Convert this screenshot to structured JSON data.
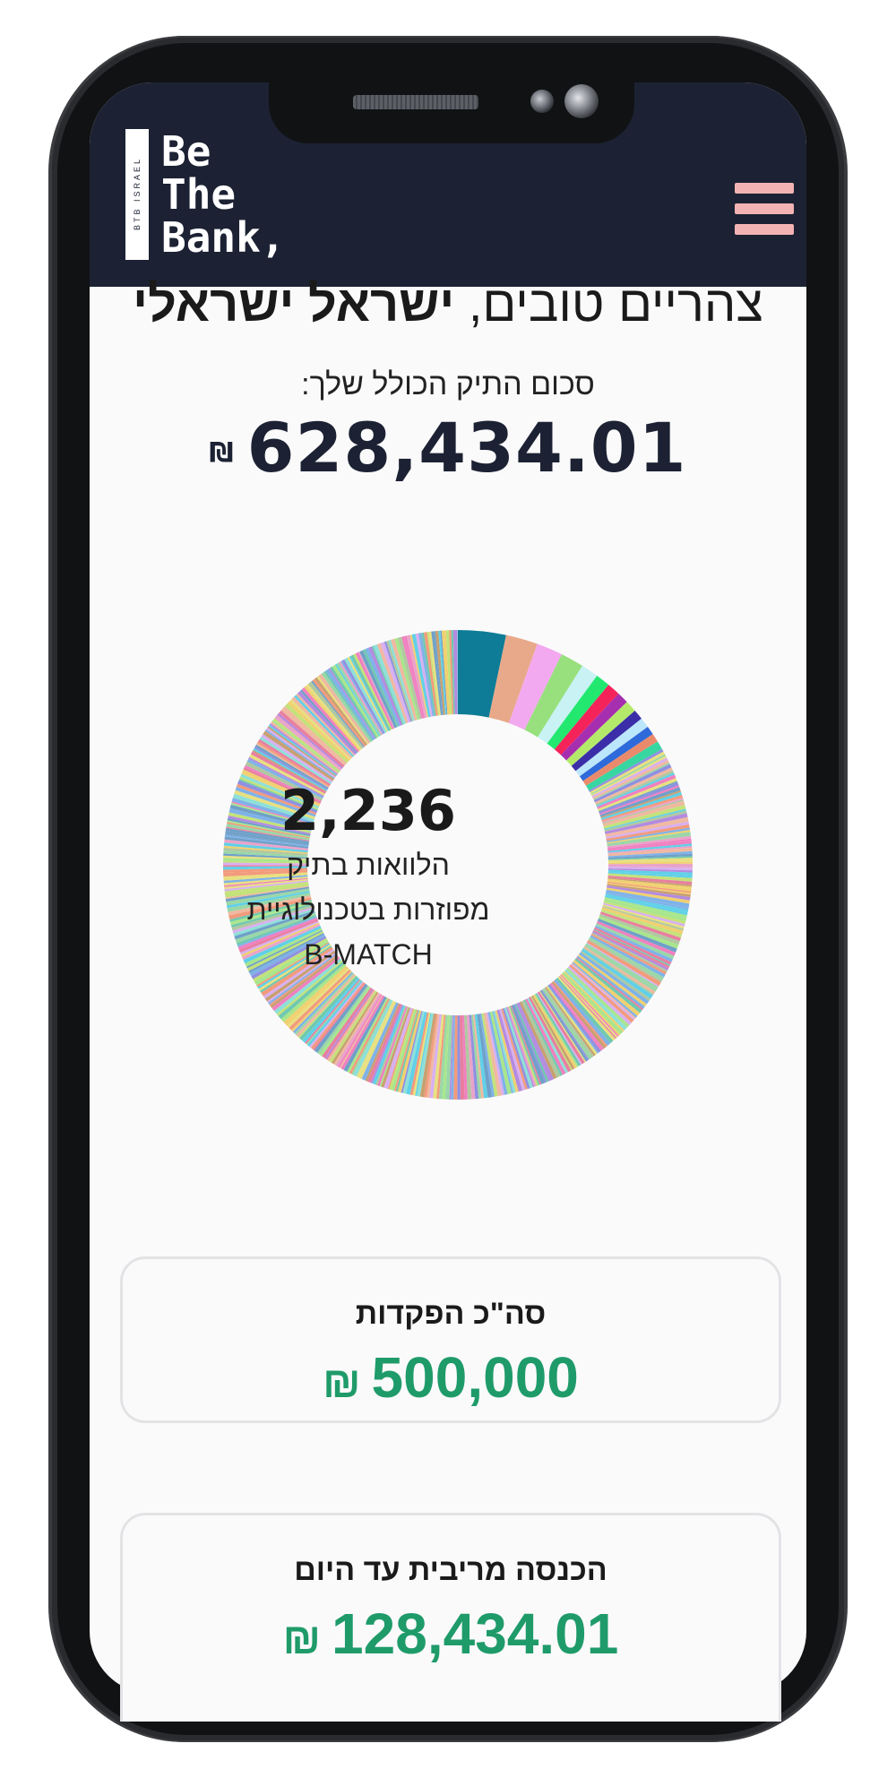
{
  "brand": {
    "logo_lines": [
      "Be",
      "The",
      "Bank,"
    ],
    "logo_vertical": "BTB ISRAEL",
    "header_color": "#1c2233",
    "accent_color": "#f4b3b3"
  },
  "header": {
    "menu_icon": "hamburger-menu-icon"
  },
  "greeting": {
    "prefix": "צהריים טובים,",
    "name": "ישראל ישראלי"
  },
  "portfolio": {
    "label": "סכום התיק הכולל שלך:",
    "value": "628,434.01",
    "currency": "₪"
  },
  "loans": {
    "count": "2,236",
    "line1": "הלוואות בתיק",
    "line2": "מפוזרות בטכנולוגיית",
    "line3": "B-MATCH"
  },
  "cards": [
    {
      "title": "סה\"כ הפקדות",
      "value": "500,000",
      "currency": "₪"
    },
    {
      "title": "הכנסה מריבית עד היום",
      "value": "128,434.01",
      "currency": "₪"
    }
  ],
  "chart_data": {
    "type": "pie",
    "segments": [
      {
        "value": 3.3,
        "color": "#0e7c96"
      },
      {
        "value": 2.2,
        "color": "#e8a98a"
      },
      {
        "value": 1.8,
        "color": "#f3a9ef"
      },
      {
        "value": 1.6,
        "color": "#98e07e"
      },
      {
        "value": 1.2,
        "color": "#c8f2f4"
      },
      {
        "value": 1.0,
        "color": "#22e870"
      },
      {
        "value": 0.9,
        "color": "#f4245a"
      },
      {
        "value": 0.8,
        "color": "#a62fb0"
      },
      {
        "value": 0.8,
        "color": "#b4ea6a"
      },
      {
        "value": 0.7,
        "color": "#3b2ea8"
      },
      {
        "value": 0.7,
        "color": "#bce6fb"
      },
      {
        "value": 0.6,
        "color": "#2e6ad9"
      },
      {
        "value": 0.6,
        "color": "#ea8a6c"
      },
      {
        "value": 0.6,
        "color": "#38d6a0"
      }
    ]
  }
}
